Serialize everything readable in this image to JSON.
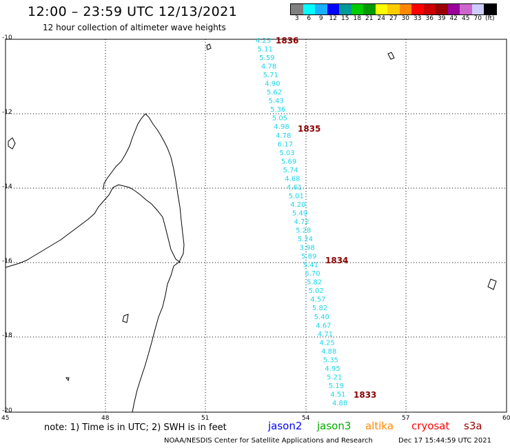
{
  "header": {
    "title": "12:00 – 23:59 UTC 12/13/2021",
    "subtitle": "12 hour collection of altimeter wave heights"
  },
  "colorbar": {
    "colors": [
      "#808080",
      "#00ffff",
      "#1ab0ff",
      "#0000ff",
      "#009999",
      "#00cc00",
      "#009900",
      "#ffff00",
      "#ffcc00",
      "#ff8800",
      "#ff0000",
      "#cc0000",
      "#990000",
      "#990099",
      "#cc66cc",
      "#ccccff",
      "#000000"
    ],
    "labels": [
      "3",
      "6",
      "9",
      "12",
      "15",
      "18",
      "21",
      "24",
      "27",
      "30",
      "33",
      "36",
      "39",
      "42",
      "45",
      "70",
      "(ft)"
    ]
  },
  "axes": {
    "lat_labels": [
      "-10",
      "-12",
      "-14",
      "-16",
      "-18",
      "-20"
    ],
    "lon_labels": [
      "45",
      "48",
      "51",
      "54",
      "57",
      "60"
    ]
  },
  "track": {
    "values": [
      "4.23",
      "5.11",
      "5.59",
      "4.78",
      "5.71",
      "4.90",
      "5.62",
      "5.43",
      "5.36",
      "5.05",
      "4.98",
      "4.78",
      "6.17",
      "5.03",
      "5.69",
      "5.74",
      "4.68",
      "4.61",
      "5.01",
      "4.20",
      "5.49",
      "4.72",
      "5.28",
      "5.24",
      "3.98",
      "5.89",
      "5.41",
      "5.70",
      "5.82",
      "5.02",
      "4.57",
      "5.82",
      "5.40",
      "4.67",
      "4.71",
      "4.25",
      "4.88",
      "5.35",
      "4.95",
      "5.21",
      "5.19",
      "4.51",
      "4.88"
    ],
    "orbits": [
      "1836",
      "1835",
      "1834",
      "1833"
    ]
  },
  "footer": {
    "note": "note:  1) Time is in UTC;  2) SWH is in feet",
    "satellites": [
      {
        "name": "jason2",
        "color": "#0000ff"
      },
      {
        "name": "jason3",
        "color": "#00aa00"
      },
      {
        "name": "altika",
        "color": "#ff8800"
      },
      {
        "name": "cryosat",
        "color": "#ff0000"
      },
      {
        "name": "s3a",
        "color": "#990000"
      }
    ],
    "credit": "NOAA/NESDIS Center for Satellite Applications and Research",
    "timestamp": "Dec 17 15:44:59 UTC 2021"
  }
}
